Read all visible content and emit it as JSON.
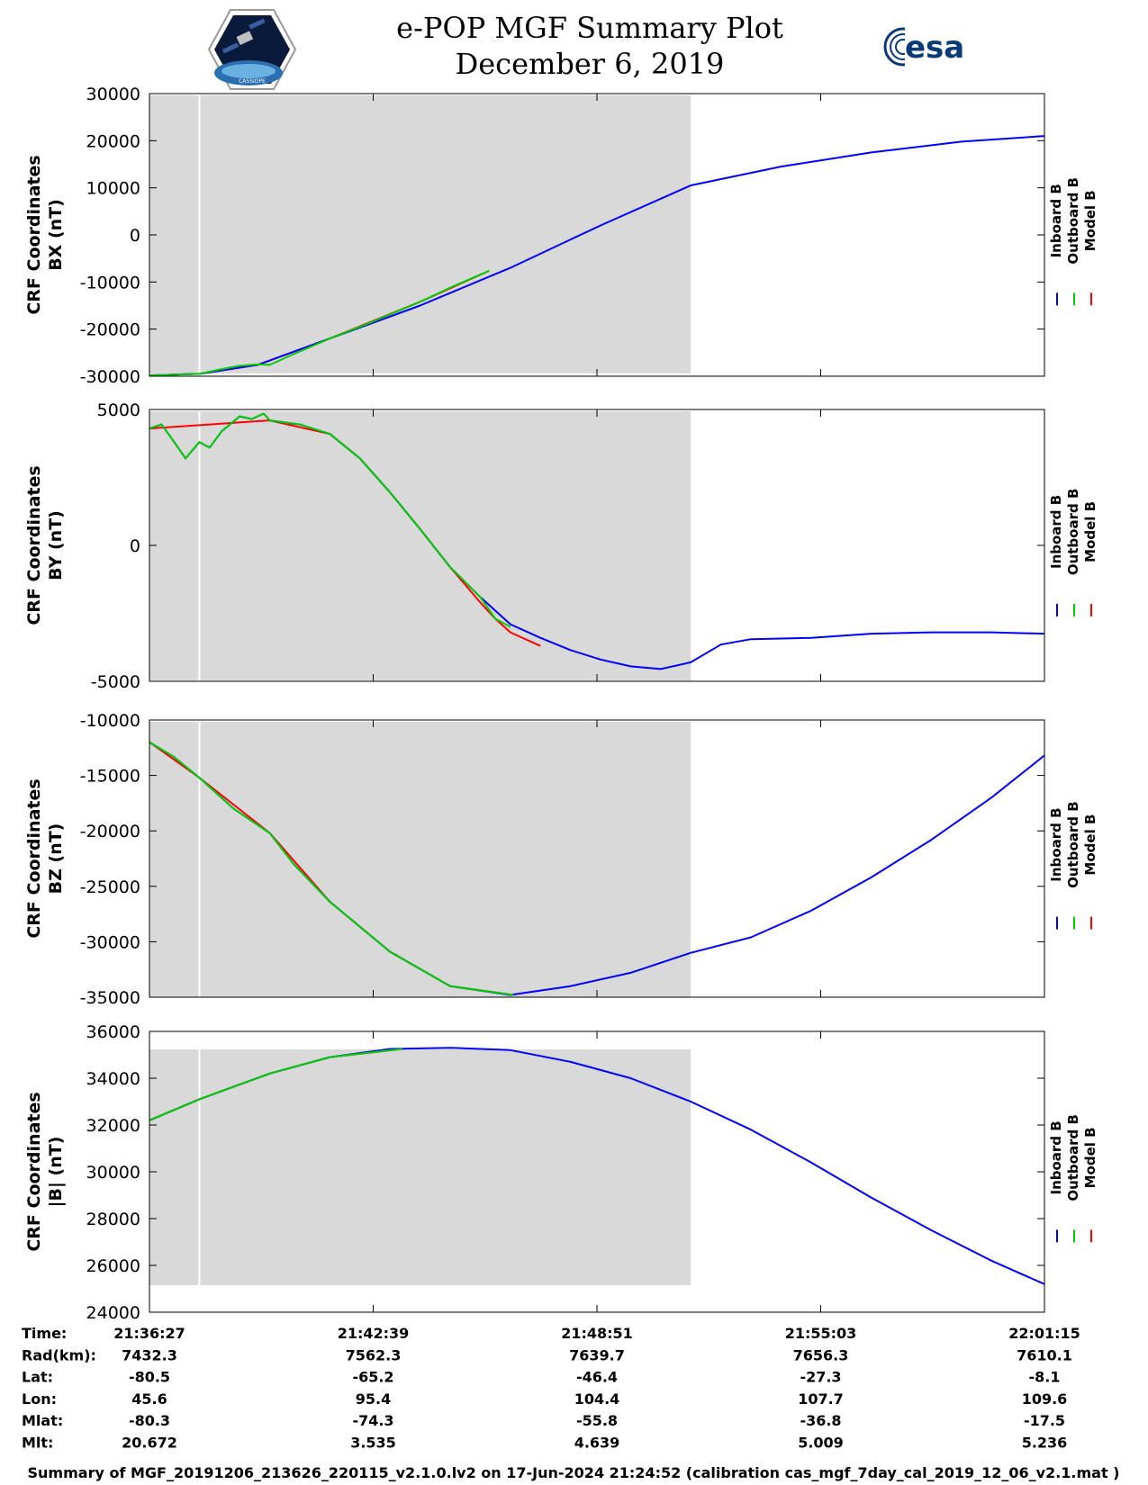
{
  "header": {
    "title_line1": "e-POP MGF Summary Plot",
    "title_line2": "December 6, 2019",
    "mission_logo_text": "CASSIOPE",
    "agency_logo_text": "esa"
  },
  "legend": {
    "items": [
      {
        "label": "Inboard B",
        "color": "#0000ff"
      },
      {
        "label": "Outboard B",
        "color": "#00cc00"
      },
      {
        "label": "Model B",
        "color": "#ff0000"
      }
    ]
  },
  "chart_data": [
    {
      "type": "line",
      "ylabel_line1": "CRF Coordinates",
      "ylabel_line2": "BX (nT)",
      "ylim": [
        -30000,
        30000
      ],
      "yticks": [
        30000,
        20000,
        10000,
        0,
        -10000,
        -20000,
        -30000
      ],
      "xlim": [
        0,
        1488
      ],
      "shaded_region": [
        0,
        900
      ],
      "data_gap_at": 83,
      "series": [
        {
          "name": "Inboard B",
          "x": [
            0,
            83,
            180,
            300,
            450,
            600,
            750,
            900,
            1050,
            1200,
            1350,
            1488
          ],
          "values": [
            -29800,
            -29500,
            -27600,
            -22000,
            -15000,
            -7000,
            2000,
            10500,
            14500,
            17500,
            19800,
            21000
          ]
        },
        {
          "name": "Outboard B",
          "x": [
            0,
            40,
            83,
            120,
            150,
            180,
            200,
            240,
            300,
            360,
            420,
            450,
            500,
            565
          ],
          "values": [
            -29800,
            -29700,
            -29500,
            -28500,
            -27800,
            -27500,
            -27600,
            -25300,
            -22000,
            -19000,
            -15800,
            -14200,
            -11200,
            -7600
          ]
        },
        {
          "name": "Model B",
          "x": [
            0,
            83,
            180,
            300,
            450,
            565
          ],
          "values": [
            -29800,
            -29500,
            -27600,
            -22000,
            -14200,
            -7600
          ]
        }
      ]
    },
    {
      "type": "line",
      "ylabel_line1": "CRF Coordinates",
      "ylabel_line2": "BY (nT)",
      "ylim": [
        -5000,
        5000
      ],
      "yticks": [
        5000,
        0,
        -5000
      ],
      "xlim": [
        0,
        1488
      ],
      "shaded_region": [
        0,
        900
      ],
      "data_gap_at": 83,
      "series": [
        {
          "name": "Inboard B",
          "x": [
            0,
            20,
            38,
            60,
            83,
            100,
            120,
            150,
            170,
            190,
            200,
            250,
            300,
            350,
            400,
            450,
            500,
            550,
            600,
            650,
            700,
            750,
            800,
            850,
            900,
            950,
            1000,
            1100,
            1200,
            1300,
            1400,
            1488
          ],
          "values": [
            4300,
            4450,
            3900,
            3200,
            3800,
            3600,
            4200,
            4750,
            4650,
            4850,
            4600,
            4450,
            4100,
            3200,
            1950,
            600,
            -800,
            -1900,
            -2900,
            -3400,
            -3850,
            -4200,
            -4450,
            -4550,
            -4300,
            -3650,
            -3450,
            -3400,
            -3250,
            -3200,
            -3200,
            -3250
          ]
        },
        {
          "name": "Outboard B",
          "x": [
            0,
            20,
            38,
            60,
            83,
            100,
            120,
            150,
            170,
            190,
            200,
            250,
            300,
            350,
            400,
            450,
            500,
            550,
            575,
            600
          ],
          "values": [
            4300,
            4450,
            3900,
            3200,
            3800,
            3600,
            4200,
            4750,
            4650,
            4850,
            4600,
            4450,
            4100,
            3200,
            1950,
            600,
            -800,
            -1900,
            -2700,
            -3000
          ]
        },
        {
          "name": "Model B",
          "x": [
            0,
            200,
            300,
            350,
            400,
            450,
            500,
            550,
            575,
            600,
            650
          ],
          "values": [
            4300,
            4600,
            4100,
            3200,
            1950,
            600,
            -800,
            -2100,
            -2700,
            -3200,
            -3700
          ]
        }
      ]
    },
    {
      "type": "line",
      "ylabel_line1": "CRF Coordinates",
      "ylabel_line2": "BZ (nT)",
      "ylim": [
        -35000,
        -10000
      ],
      "yticks": [
        -10000,
        -15000,
        -20000,
        -25000,
        -30000,
        -35000
      ],
      "xlim": [
        0,
        1488
      ],
      "shaded_region": [
        0,
        900
      ],
      "data_gap_at": 83,
      "series": [
        {
          "name": "Inboard B",
          "x": [
            0,
            40,
            83,
            140,
            200,
            240,
            300,
            400,
            500,
            600,
            700,
            800,
            900,
            1000,
            1100,
            1200,
            1300,
            1400,
            1488
          ],
          "values": [
            -12000,
            -13300,
            -15200,
            -18000,
            -20200,
            -23000,
            -26400,
            -30900,
            -34000,
            -34800,
            -34000,
            -32800,
            -31000,
            -29600,
            -27200,
            -24200,
            -20800,
            -17000,
            -13200
          ]
        },
        {
          "name": "Outboard B",
          "x": [
            0,
            40,
            83,
            140,
            200,
            240,
            300,
            400,
            500,
            605
          ],
          "values": [
            -12000,
            -13300,
            -15200,
            -18000,
            -20200,
            -23000,
            -26400,
            -30900,
            -34000,
            -34800
          ]
        },
        {
          "name": "Model B",
          "x": [
            0,
            83,
            200,
            300,
            400,
            500,
            605
          ],
          "values": [
            -12000,
            -15200,
            -20200,
            -26400,
            -30900,
            -34000,
            -34800
          ]
        }
      ]
    },
    {
      "type": "line",
      "ylabel_line1": "CRF Coordinates",
      "ylabel_line2": "|B| (nT)",
      "ylim": [
        24000,
        36000
      ],
      "yticks": [
        36000,
        34000,
        32000,
        30000,
        28000,
        26000,
        24000
      ],
      "xlim": [
        0,
        1488
      ],
      "shaded_region": [
        0,
        900
      ],
      "data_gap_at": 83,
      "series": [
        {
          "name": "Inboard B",
          "x": [
            0,
            83,
            200,
            300,
            400,
            500,
            600,
            700,
            800,
            900,
            1000,
            1100,
            1200,
            1300,
            1400,
            1488
          ],
          "values": [
            32200,
            33100,
            34200,
            34900,
            35250,
            35300,
            35200,
            34700,
            34000,
            33000,
            31800,
            30400,
            28900,
            27500,
            26200,
            25200
          ]
        },
        {
          "name": "Outboard B",
          "x": [
            0,
            83,
            200,
            300,
            420
          ],
          "values": [
            32200,
            33100,
            34200,
            34900,
            35250
          ]
        },
        {
          "name": "Model B",
          "x": [
            0,
            83,
            200,
            300,
            420
          ],
          "values": [
            32200,
            33100,
            34200,
            34900,
            35250
          ]
        }
      ]
    }
  ],
  "x_axis": {
    "tick_fractions": [
      0,
      0.25,
      0.5,
      0.75,
      1.0
    ]
  },
  "info_table": {
    "rows": [
      {
        "label": "Time:",
        "values": [
          "21:36:27",
          "21:42:39",
          "21:48:51",
          "21:55:03",
          "22:01:15"
        ]
      },
      {
        "label": "Rad(km):",
        "values": [
          "7432.3",
          "7562.3",
          "7639.7",
          "7656.3",
          "7610.1"
        ]
      },
      {
        "label": "Lat:",
        "values": [
          "-80.5",
          "-65.2",
          "-46.4",
          "-27.3",
          "-8.1"
        ]
      },
      {
        "label": "Lon:",
        "values": [
          "45.6",
          "95.4",
          "104.4",
          "107.7",
          "109.6"
        ]
      },
      {
        "label": "Mlat:",
        "values": [
          "-80.3",
          "-74.3",
          "-55.8",
          "-36.8",
          "-17.5"
        ]
      },
      {
        "label": "Mlt:",
        "values": [
          "20.672",
          "3.535",
          "4.639",
          "5.009",
          "5.236"
        ]
      }
    ]
  },
  "footer": {
    "text": "Summary of MGF_20191206_213626_220115_v2.1.0.lv2 on 17-Jun-2024 21:24:52 (calibration cas_mgf_7day_cal_2019_12_06_v2.1.mat )"
  }
}
